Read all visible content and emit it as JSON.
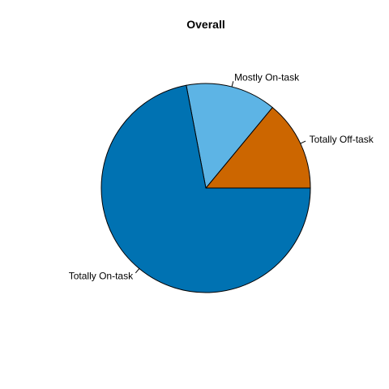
{
  "chart_data": {
    "type": "pie",
    "title": "Overall",
    "slices": [
      {
        "label": "Totally Off-task",
        "value": 0.14,
        "color": "#CC6600"
      },
      {
        "label": "Mostly On-task",
        "value": 0.14,
        "color": "#5DB4E5"
      },
      {
        "label": "Totally On-task",
        "value": 0.72,
        "color": "#0072B2"
      }
    ],
    "start_angle_deg": 0,
    "direction": "counterclockwise",
    "legend": "none"
  }
}
